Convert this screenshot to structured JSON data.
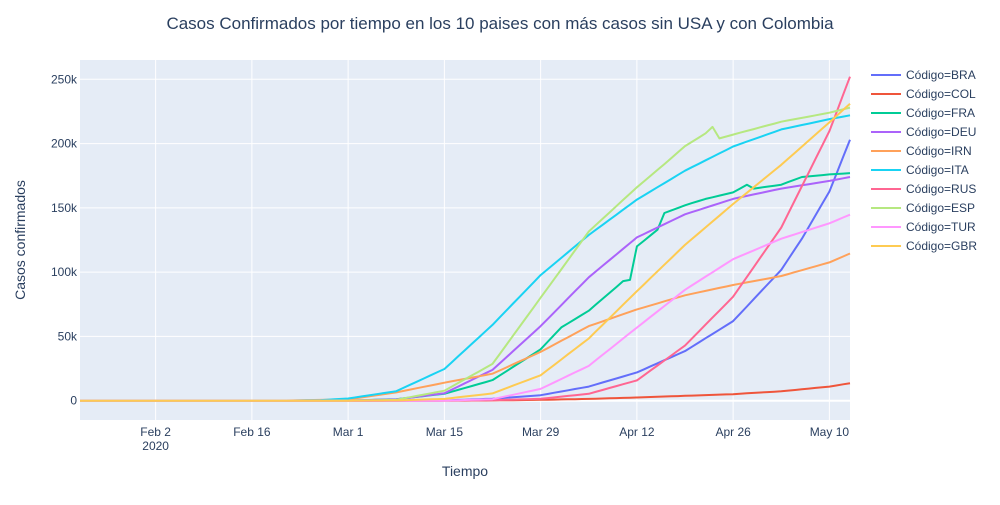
{
  "chart_data": {
    "type": "line",
    "title": "Casos Confirmados por tiempo en los 10 paises con más casos sin USA y con Colombia",
    "xlabel": "Tiempo",
    "ylabel": "Casos confirmados",
    "xlim": [
      "2020-01-22",
      "2020-05-13"
    ],
    "ylim": [
      -15000,
      265000
    ],
    "x_ticks": [
      {
        "date": "2020-02-02",
        "label": "Feb 2",
        "sublabel": "2020"
      },
      {
        "date": "2020-02-16",
        "label": "Feb 16",
        "sublabel": ""
      },
      {
        "date": "2020-03-01",
        "label": "Mar 1",
        "sublabel": ""
      },
      {
        "date": "2020-03-15",
        "label": "Mar 15",
        "sublabel": ""
      },
      {
        "date": "2020-03-29",
        "label": "Mar 29",
        "sublabel": ""
      },
      {
        "date": "2020-04-12",
        "label": "Apr 12",
        "sublabel": ""
      },
      {
        "date": "2020-04-26",
        "label": "Apr 26",
        "sublabel": ""
      },
      {
        "date": "2020-05-10",
        "label": "May 10",
        "sublabel": ""
      }
    ],
    "y_ticks": [
      {
        "value": 0,
        "label": "0"
      },
      {
        "value": 50000,
        "label": "50k"
      },
      {
        "value": 100000,
        "label": "100k"
      },
      {
        "value": 150000,
        "label": "150k"
      },
      {
        "value": 200000,
        "label": "200k"
      },
      {
        "value": 250000,
        "label": "250k"
      }
    ],
    "grid": true,
    "legend_position": "right",
    "series": [
      {
        "name": "Código=BRA",
        "color": "#636efa",
        "points": [
          [
            "2020-01-22",
            0
          ],
          [
            "2020-03-01",
            0
          ],
          [
            "2020-03-15",
            200
          ],
          [
            "2020-03-22",
            1600
          ],
          [
            "2020-03-29",
            4300
          ],
          [
            "2020-04-05",
            11000
          ],
          [
            "2020-04-12",
            22000
          ],
          [
            "2020-04-19",
            38600
          ],
          [
            "2020-04-26",
            61900
          ],
          [
            "2020-05-03",
            101800
          ],
          [
            "2020-05-06",
            126000
          ],
          [
            "2020-05-10",
            162700
          ],
          [
            "2020-05-13",
            203000
          ]
        ]
      },
      {
        "name": "Código=COL",
        "color": "#ef553b",
        "points": [
          [
            "2020-01-22",
            0
          ],
          [
            "2020-03-08",
            0
          ],
          [
            "2020-03-15",
            50
          ],
          [
            "2020-03-22",
            230
          ],
          [
            "2020-03-29",
            700
          ],
          [
            "2020-04-05",
            1400
          ],
          [
            "2020-04-12",
            2500
          ],
          [
            "2020-04-19",
            3800
          ],
          [
            "2020-04-26",
            5100
          ],
          [
            "2020-05-03",
            7300
          ],
          [
            "2020-05-10",
            11000
          ],
          [
            "2020-05-13",
            13600
          ]
        ]
      },
      {
        "name": "Código=FRA",
        "color": "#00cc96",
        "points": [
          [
            "2020-01-22",
            0
          ],
          [
            "2020-03-01",
            130
          ],
          [
            "2020-03-08",
            1200
          ],
          [
            "2020-03-15",
            5400
          ],
          [
            "2020-03-22",
            16000
          ],
          [
            "2020-03-29",
            40000
          ],
          [
            "2020-04-01",
            57000
          ],
          [
            "2020-04-05",
            70000
          ],
          [
            "2020-04-10",
            93000
          ],
          [
            "2020-04-11",
            94000
          ],
          [
            "2020-04-12",
            120000
          ],
          [
            "2020-04-15",
            133000
          ],
          [
            "2020-04-16",
            146000
          ],
          [
            "2020-04-19",
            152000
          ],
          [
            "2020-04-22",
            157000
          ],
          [
            "2020-04-26",
            162000
          ],
          [
            "2020-04-28",
            168000
          ],
          [
            "2020-04-29",
            165000
          ],
          [
            "2020-05-03",
            168000
          ],
          [
            "2020-05-06",
            174000
          ],
          [
            "2020-05-10",
            176000
          ],
          [
            "2020-05-13",
            177000
          ]
        ]
      },
      {
        "name": "Código=DEU",
        "color": "#ab63fa",
        "points": [
          [
            "2020-01-22",
            0
          ],
          [
            "2020-03-01",
            130
          ],
          [
            "2020-03-08",
            1000
          ],
          [
            "2020-03-15",
            5800
          ],
          [
            "2020-03-22",
            24000
          ],
          [
            "2020-03-29",
            58000
          ],
          [
            "2020-04-05",
            96000
          ],
          [
            "2020-04-12",
            127000
          ],
          [
            "2020-04-19",
            145000
          ],
          [
            "2020-04-26",
            157000
          ],
          [
            "2020-05-03",
            165000
          ],
          [
            "2020-05-10",
            171000
          ],
          [
            "2020-05-13",
            174000
          ]
        ]
      },
      {
        "name": "Código=IRN",
        "color": "#ffa15a",
        "points": [
          [
            "2020-01-22",
            0
          ],
          [
            "2020-02-19",
            0
          ],
          [
            "2020-03-01",
            1000
          ],
          [
            "2020-03-08",
            6500
          ],
          [
            "2020-03-15",
            14000
          ],
          [
            "2020-03-22",
            21000
          ],
          [
            "2020-03-29",
            38000
          ],
          [
            "2020-04-05",
            58000
          ],
          [
            "2020-04-12",
            71000
          ],
          [
            "2020-04-19",
            82000
          ],
          [
            "2020-04-26",
            90000
          ],
          [
            "2020-05-03",
            97000
          ],
          [
            "2020-05-10",
            107600
          ],
          [
            "2020-05-13",
            114500
          ]
        ]
      },
      {
        "name": "Código=ITA",
        "color": "#19d3f3",
        "points": [
          [
            "2020-01-22",
            0
          ],
          [
            "2020-02-20",
            0
          ],
          [
            "2020-02-26",
            450
          ],
          [
            "2020-03-01",
            1700
          ],
          [
            "2020-03-08",
            7400
          ],
          [
            "2020-03-15",
            24700
          ],
          [
            "2020-03-22",
            59000
          ],
          [
            "2020-03-29",
            97700
          ],
          [
            "2020-04-05",
            128900
          ],
          [
            "2020-04-12",
            156400
          ],
          [
            "2020-04-19",
            178900
          ],
          [
            "2020-04-26",
            197700
          ],
          [
            "2020-05-03",
            211000
          ],
          [
            "2020-05-10",
            219000
          ],
          [
            "2020-05-13",
            222000
          ]
        ]
      },
      {
        "name": "Código=RUS",
        "color": "#ff6692",
        "points": [
          [
            "2020-01-22",
            0
          ],
          [
            "2020-03-15",
            60
          ],
          [
            "2020-03-22",
            370
          ],
          [
            "2020-03-29",
            1500
          ],
          [
            "2020-04-05",
            5400
          ],
          [
            "2020-04-12",
            15800
          ],
          [
            "2020-04-19",
            42900
          ],
          [
            "2020-04-26",
            80900
          ],
          [
            "2020-05-03",
            134700
          ],
          [
            "2020-05-10",
            209700
          ],
          [
            "2020-05-13",
            252000
          ]
        ]
      },
      {
        "name": "Código=ESP",
        "color": "#b6e880",
        "points": [
          [
            "2020-01-22",
            0
          ],
          [
            "2020-03-01",
            80
          ],
          [
            "2020-03-08",
            670
          ],
          [
            "2020-03-15",
            7800
          ],
          [
            "2020-03-22",
            28600
          ],
          [
            "2020-03-29",
            80100
          ],
          [
            "2020-04-05",
            131600
          ],
          [
            "2020-04-12",
            166000
          ],
          [
            "2020-04-16",
            184000
          ],
          [
            "2020-04-19",
            198000
          ],
          [
            "2020-04-22",
            208000
          ],
          [
            "2020-04-23",
            213000
          ],
          [
            "2020-04-24",
            204000
          ],
          [
            "2020-04-26",
            207000
          ],
          [
            "2020-05-03",
            217000
          ],
          [
            "2020-05-10",
            224000
          ],
          [
            "2020-05-13",
            228000
          ]
        ]
      },
      {
        "name": "Código=TUR",
        "color": "#ff97ff",
        "points": [
          [
            "2020-01-22",
            0
          ],
          [
            "2020-03-12",
            0
          ],
          [
            "2020-03-15",
            50
          ],
          [
            "2020-03-22",
            1200
          ],
          [
            "2020-03-29",
            9200
          ],
          [
            "2020-04-05",
            27100
          ],
          [
            "2020-04-12",
            56900
          ],
          [
            "2020-04-19",
            86300
          ],
          [
            "2020-04-26",
            110100
          ],
          [
            "2020-05-03",
            126000
          ],
          [
            "2020-05-10",
            138000
          ],
          [
            "2020-05-13",
            144700
          ]
        ]
      },
      {
        "name": "Código=GBR",
        "color": "#fecb52",
        "points": [
          [
            "2020-01-22",
            0
          ],
          [
            "2020-03-01",
            40
          ],
          [
            "2020-03-08",
            270
          ],
          [
            "2020-03-15",
            1400
          ],
          [
            "2020-03-22",
            5700
          ],
          [
            "2020-03-29",
            19800
          ],
          [
            "2020-04-05",
            48400
          ],
          [
            "2020-04-12",
            85200
          ],
          [
            "2020-04-19",
            121200
          ],
          [
            "2020-04-26",
            153000
          ],
          [
            "2020-05-03",
            183500
          ],
          [
            "2020-05-10",
            216500
          ],
          [
            "2020-05-13",
            231000
          ]
        ]
      }
    ]
  }
}
